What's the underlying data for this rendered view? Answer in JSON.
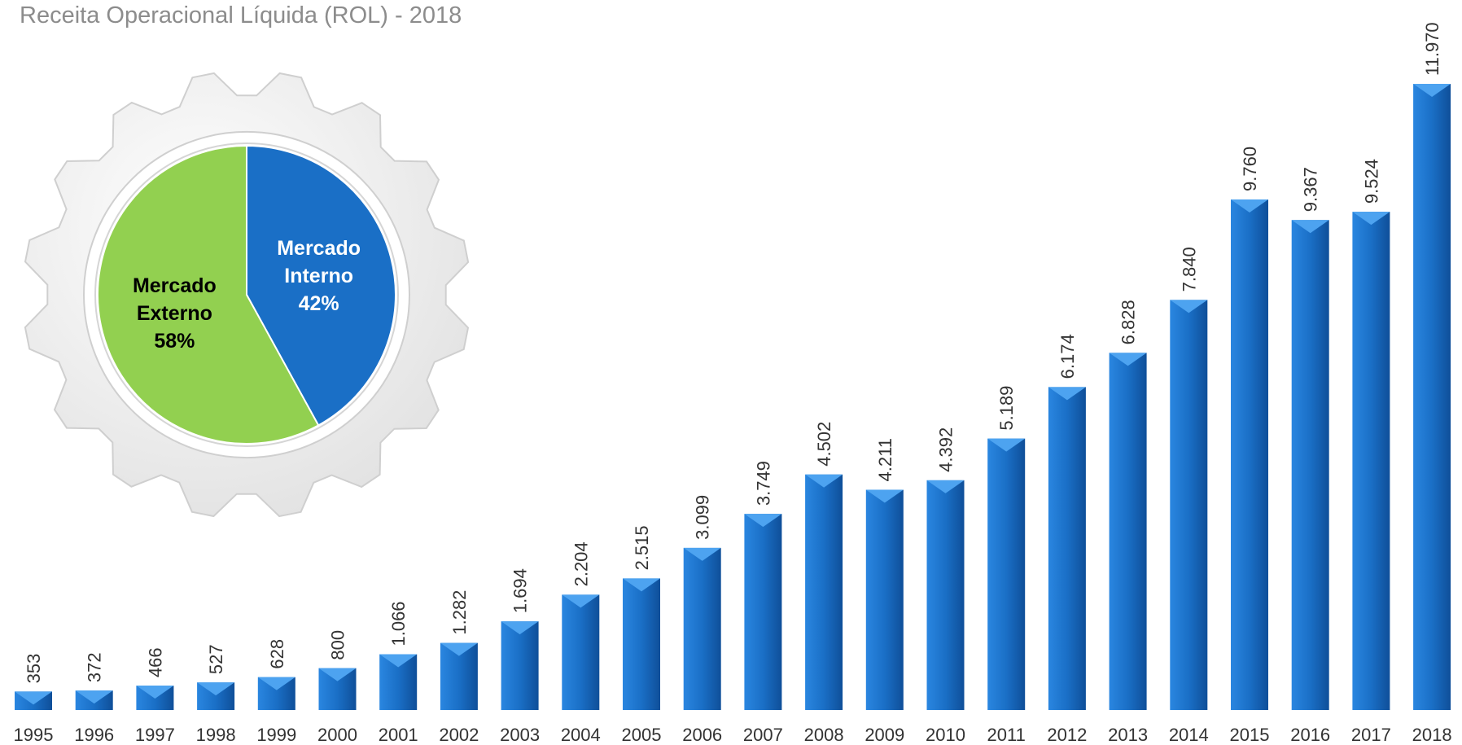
{
  "chart_data": [
    {
      "type": "bar",
      "title": "Receita Operacional Líquida (ROL) - 2018",
      "categories": [
        "1995",
        "1996",
        "1997",
        "1998",
        "1999",
        "2000",
        "2001",
        "2002",
        "2003",
        "2004",
        "2005",
        "2006",
        "2007",
        "2008",
        "2009",
        "2010",
        "2011",
        "2012",
        "2013",
        "2014",
        "2015",
        "2016",
        "2017",
        "2018"
      ],
      "values": [
        353,
        372,
        466,
        527,
        628,
        800,
        1066,
        1282,
        1694,
        2204,
        2515,
        3099,
        3749,
        4502,
        4211,
        4392,
        5189,
        6174,
        6828,
        7840,
        9760,
        9367,
        9524,
        11970
      ],
      "value_labels": [
        "353",
        "372",
        "466",
        "527",
        "628",
        "800",
        "1.066",
        "1.282",
        "1.694",
        "2.204",
        "2.515",
        "3.099",
        "3.749",
        "4.502",
        "4.211",
        "4.392",
        "5.189",
        "6.174",
        "6.828",
        "7.840",
        "9.760",
        "9.367",
        "9.524",
        "11.970"
      ],
      "color": "#1a6fc6"
    },
    {
      "type": "pie",
      "categories": [
        "Mercado Interno",
        "Mercado Externo"
      ],
      "values": [
        42,
        58
      ],
      "value_labels": [
        "42%",
        "58%"
      ],
      "colors": [
        "#1a6fc6",
        "#92d050"
      ],
      "label_colors": [
        "#ffffff",
        "#000000"
      ]
    }
  ]
}
